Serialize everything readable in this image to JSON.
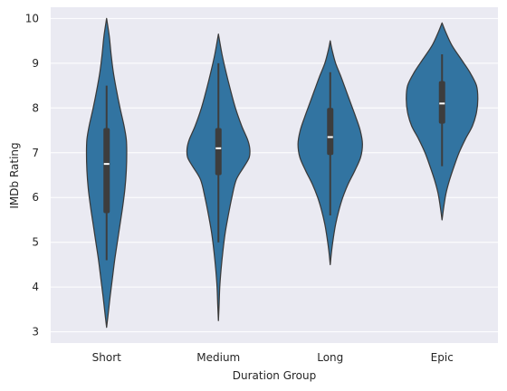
{
  "chart_data": {
    "type": "violin",
    "title": "",
    "xlabel": "Duration Group",
    "ylabel": "IMDb Rating",
    "ylim": [
      2.75,
      10.25
    ],
    "yticks": [
      3,
      4,
      5,
      6,
      7,
      8,
      9,
      10
    ],
    "grid": true,
    "categories": [
      "Short",
      "Medium",
      "Long",
      "Epic"
    ],
    "color": "#3274a1",
    "edge_color": "#3a3a3a",
    "background": "#eaeaf2",
    "violins": [
      {
        "category": "Short",
        "min_extent": 3.1,
        "max_extent": 10.0,
        "whisker_low": 4.6,
        "q1": 5.65,
        "median": 6.75,
        "q3": 7.55,
        "whisker_high": 8.5,
        "profile": [
          [
            3.1,
            0.0
          ],
          [
            3.4,
            0.035
          ],
          [
            3.8,
            0.08
          ],
          [
            4.2,
            0.13
          ],
          [
            4.6,
            0.18
          ],
          [
            5.0,
            0.24
          ],
          [
            5.4,
            0.3
          ],
          [
            5.8,
            0.36
          ],
          [
            6.2,
            0.41
          ],
          [
            6.6,
            0.44
          ],
          [
            7.0,
            0.45
          ],
          [
            7.3,
            0.44
          ],
          [
            7.6,
            0.39
          ],
          [
            8.0,
            0.3
          ],
          [
            8.4,
            0.22
          ],
          [
            8.8,
            0.15
          ],
          [
            9.2,
            0.1
          ],
          [
            9.6,
            0.06
          ],
          [
            10.0,
            0.0
          ]
        ]
      },
      {
        "category": "Medium",
        "min_extent": 3.25,
        "max_extent": 9.65,
        "whisker_low": 5.0,
        "q1": 6.5,
        "median": 7.1,
        "q3": 7.55,
        "whisker_high": 9.0,
        "profile": [
          [
            3.25,
            0.0
          ],
          [
            3.6,
            0.015
          ],
          [
            4.0,
            0.03
          ],
          [
            4.4,
            0.06
          ],
          [
            4.8,
            0.1
          ],
          [
            5.2,
            0.15
          ],
          [
            5.6,
            0.22
          ],
          [
            6.0,
            0.3
          ],
          [
            6.4,
            0.4
          ],
          [
            6.7,
            0.58
          ],
          [
            6.9,
            0.69
          ],
          [
            7.1,
            0.7
          ],
          [
            7.3,
            0.65
          ],
          [
            7.6,
            0.52
          ],
          [
            8.0,
            0.38
          ],
          [
            8.4,
            0.27
          ],
          [
            8.8,
            0.17
          ],
          [
            9.2,
            0.08
          ],
          [
            9.65,
            0.0
          ]
        ]
      },
      {
        "category": "Long",
        "min_extent": 4.5,
        "max_extent": 9.5,
        "whisker_low": 5.6,
        "q1": 6.95,
        "median": 7.35,
        "q3": 8.0,
        "whisker_high": 8.8,
        "profile": [
          [
            4.5,
            0.0
          ],
          [
            4.8,
            0.03
          ],
          [
            5.1,
            0.07
          ],
          [
            5.4,
            0.12
          ],
          [
            5.7,
            0.19
          ],
          [
            6.0,
            0.28
          ],
          [
            6.3,
            0.4
          ],
          [
            6.6,
            0.55
          ],
          [
            6.9,
            0.68
          ],
          [
            7.2,
            0.72
          ],
          [
            7.5,
            0.67
          ],
          [
            7.8,
            0.57
          ],
          [
            8.1,
            0.46
          ],
          [
            8.4,
            0.35
          ],
          [
            8.7,
            0.24
          ],
          [
            9.0,
            0.12
          ],
          [
            9.3,
            0.04
          ],
          [
            9.5,
            0.0
          ]
        ]
      },
      {
        "category": "Epic",
        "min_extent": 5.5,
        "max_extent": 9.9,
        "whisker_low": 6.7,
        "q1": 7.65,
        "median": 8.1,
        "q3": 8.6,
        "whisker_high": 9.2,
        "profile": [
          [
            5.5,
            0.0
          ],
          [
            5.8,
            0.04
          ],
          [
            6.1,
            0.09
          ],
          [
            6.4,
            0.17
          ],
          [
            6.7,
            0.27
          ],
          [
            7.0,
            0.38
          ],
          [
            7.3,
            0.52
          ],
          [
            7.6,
            0.68
          ],
          [
            7.9,
            0.77
          ],
          [
            8.2,
            0.8
          ],
          [
            8.5,
            0.77
          ],
          [
            8.8,
            0.62
          ],
          [
            9.1,
            0.42
          ],
          [
            9.4,
            0.22
          ],
          [
            9.7,
            0.08
          ],
          [
            9.9,
            0.0
          ]
        ]
      }
    ]
  }
}
